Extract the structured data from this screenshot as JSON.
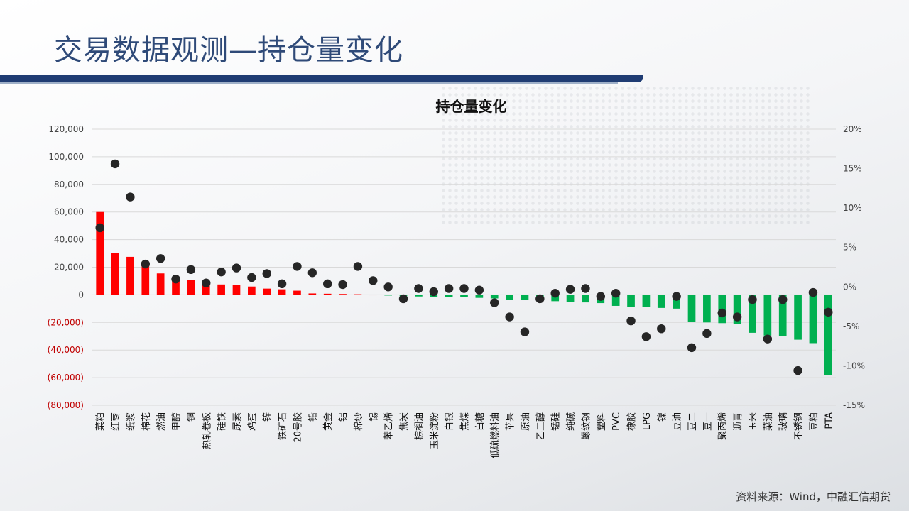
{
  "page": {
    "title": "交易数据观测—持仓量变化",
    "source": "资料来源：Wind，中融汇信期货"
  },
  "colors": {
    "positive": "#ff0000",
    "negative": "#00b050",
    "dot": "#262626",
    "grid": "#d9d9d9"
  },
  "chart_data": {
    "type": "bar",
    "title": "持仓量变化",
    "categories": [
      "菜粕",
      "红枣",
      "纸浆",
      "棉花",
      "燃油",
      "甲醇",
      "铜",
      "热轧卷板",
      "硅铁",
      "尿素",
      "鸡蛋",
      "锌",
      "铁矿石",
      "20号胶",
      "铅",
      "黄金",
      "铝",
      "棉纱",
      "锡",
      "苯乙烯",
      "焦炭",
      "棕榈油",
      "玉米淀粉",
      "白银",
      "焦煤",
      "白糖",
      "低硫燃料油",
      "苹果",
      "原油",
      "乙二醇",
      "锰硅",
      "纯碱",
      "螺纹钢",
      "塑料",
      "PVC",
      "橡胶",
      "LPG",
      "镍",
      "豆油",
      "豆二",
      "豆一",
      "聚丙烯",
      "沥青",
      "玉米",
      "菜油",
      "玻璃",
      "不锈钢",
      "豆粕",
      "PTA"
    ],
    "y_left": {
      "min": -80000,
      "max": 120000,
      "step": 20000,
      "tick_labels": [
        "120,000",
        "100,000",
        "80,000",
        "60,000",
        "40,000",
        "20,000",
        "0",
        "(20,000)",
        "(40,000)",
        "(60,000)",
        "(80,000)"
      ]
    },
    "y_right": {
      "min": -15,
      "max": 20,
      "step": 5,
      "tick_labels": [
        "20%",
        "15%",
        "10%",
        "5%",
        "0%",
        "-5%",
        "-10%",
        "-15%"
      ]
    },
    "series": [
      {
        "kind": "bar",
        "axis": "left",
        "values": [
          60000,
          30500,
          27500,
          22500,
          15500,
          12500,
          11000,
          9500,
          7500,
          7000,
          6000,
          4500,
          4000,
          3000,
          1000,
          800,
          600,
          400,
          200,
          -500,
          -1000,
          -1200,
          -1400,
          -1600,
          -1800,
          -2200,
          -2600,
          -3500,
          -3800,
          -4200,
          -4600,
          -5000,
          -5500,
          -6000,
          -8000,
          -9000,
          -9000,
          -9500,
          -10000,
          -19500,
          -20000,
          -20500,
          -21000,
          -27500,
          -29500,
          -30000,
          -32500,
          -35000,
          -58000
        ]
      },
      {
        "kind": "scatter",
        "axis": "right",
        "values": [
          7.5,
          15.6,
          11.4,
          2.9,
          3.6,
          1.0,
          2.2,
          0.5,
          1.9,
          2.4,
          1.2,
          1.7,
          0.4,
          2.6,
          1.8,
          0.4,
          0.3,
          2.6,
          0.8,
          0.0,
          -1.5,
          -0.2,
          -0.6,
          -0.2,
          -0.2,
          -0.4,
          -2.0,
          -3.8,
          -5.7,
          -1.5,
          -0.8,
          -0.3,
          -0.2,
          -1.2,
          -0.8,
          -4.3,
          -6.3,
          -5.3,
          -1.2,
          -7.7,
          -5.9,
          -3.3,
          -3.8,
          -1.6,
          -6.6,
          -1.6,
          -10.6,
          -0.7,
          -3.2
        ]
      }
    ],
    "grid": true,
    "legend": "none"
  }
}
